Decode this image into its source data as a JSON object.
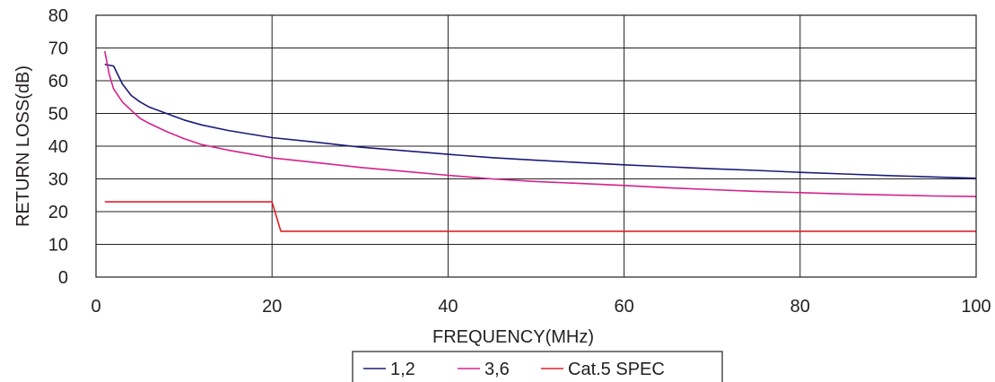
{
  "chart_data": {
    "type": "line",
    "title": "",
    "xlabel": "FREQUENCY(MHz)",
    "ylabel": "RETURN LOSS(dB)",
    "xlim": [
      0,
      100
    ],
    "ylim": [
      0,
      80
    ],
    "x_ticks": [
      "0",
      "20",
      "40",
      "60",
      "80",
      "100"
    ],
    "y_ticks": [
      "0",
      "10",
      "20",
      "30",
      "40",
      "50",
      "60",
      "70",
      "80"
    ],
    "grid": true,
    "legend_position": "bottom-center",
    "series": [
      {
        "name": "1,2",
        "color": "#1a1a7a",
        "points": [
          [
            1,
            65
          ],
          [
            2,
            64.5
          ],
          [
            3,
            59
          ],
          [
            4,
            55.5
          ],
          [
            5,
            53.5
          ],
          [
            6,
            52
          ],
          [
            8,
            50
          ],
          [
            10,
            48
          ],
          [
            12,
            46.5
          ],
          [
            15,
            44.8
          ],
          [
            20,
            42.6
          ],
          [
            25,
            41.2
          ],
          [
            30,
            39.7
          ],
          [
            35,
            38.6
          ],
          [
            40,
            37.5
          ],
          [
            45,
            36.5
          ],
          [
            50,
            35.7
          ],
          [
            55,
            35
          ],
          [
            60,
            34.3
          ],
          [
            65,
            33.7
          ],
          [
            70,
            33.1
          ],
          [
            75,
            32.6
          ],
          [
            80,
            32
          ],
          [
            85,
            31.5
          ],
          [
            90,
            31
          ],
          [
            95,
            30.6
          ],
          [
            100,
            30.2
          ]
        ]
      },
      {
        "name": "3,6",
        "color": "#d6208b",
        "points": [
          [
            1,
            69
          ],
          [
            1.5,
            62
          ],
          [
            2,
            57.5
          ],
          [
            3,
            53.5
          ],
          [
            4,
            51
          ],
          [
            5,
            48.5
          ],
          [
            6,
            47
          ],
          [
            8,
            44.5
          ],
          [
            10,
            42.3
          ],
          [
            12,
            40.5
          ],
          [
            15,
            38.8
          ],
          [
            20,
            36.4
          ],
          [
            25,
            35
          ],
          [
            30,
            33.5
          ],
          [
            35,
            32.3
          ],
          [
            40,
            31.1
          ],
          [
            45,
            30
          ],
          [
            50,
            29.2
          ],
          [
            55,
            28.6
          ],
          [
            60,
            28
          ],
          [
            65,
            27.3
          ],
          [
            70,
            26.7
          ],
          [
            75,
            26.2
          ],
          [
            80,
            25.8
          ],
          [
            85,
            25.4
          ],
          [
            90,
            25.1
          ],
          [
            95,
            24.8
          ],
          [
            100,
            24.6
          ]
        ]
      },
      {
        "name": "Cat.5 SPEC",
        "color": "#e0202a",
        "points": [
          [
            1,
            23
          ],
          [
            20,
            23
          ],
          [
            21,
            14
          ],
          [
            100,
            14
          ]
        ]
      }
    ]
  }
}
